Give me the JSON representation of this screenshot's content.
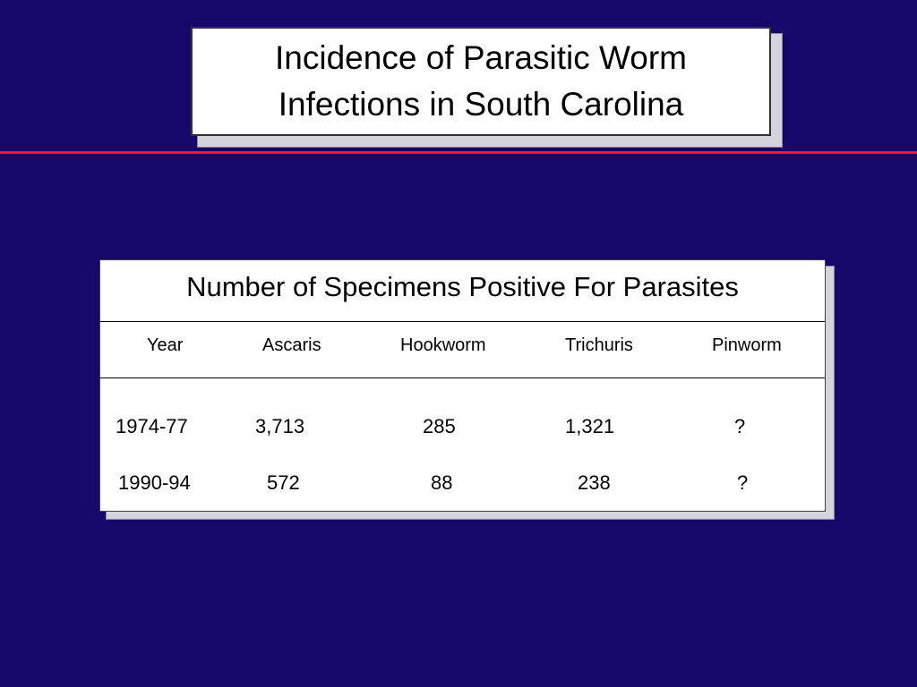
{
  "slide": {
    "title_lines": [
      "Incidence of Parasitic Worm",
      "Infections in South Carolina"
    ]
  },
  "table": {
    "title": "Number of Specimens Positive For Parasites",
    "headers": [
      "Year",
      "Ascaris",
      "Hookworm",
      "Trichuris",
      "Pinworm"
    ],
    "rows": [
      [
        "1974-77",
        "3,713",
        "285",
        "1,321",
        "?"
      ],
      [
        "1990-94",
        "572",
        "88",
        "238",
        "?"
      ]
    ]
  },
  "colors": {
    "background": "#15086a",
    "rule": "#e8202a",
    "box": "#ffffff"
  }
}
